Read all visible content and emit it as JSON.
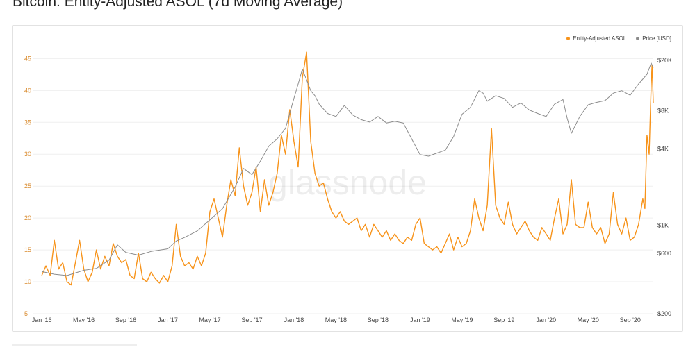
{
  "page": {
    "title": "Bitcoin: Entity-Adjusted ASOL (7d Moving Average)"
  },
  "watermark": "glassnode",
  "legend": [
    {
      "label": "Entity-Adjusted ASOL",
      "color": "#f7931a"
    },
    {
      "label": "Price [USD]",
      "color": "#8c8c8c"
    }
  ],
  "chart_data": {
    "type": "line",
    "title": "Bitcoin: Entity-Adjusted ASOL (7d Moving Average)",
    "x_ticks": [
      "Jan '16",
      "May '16",
      "Sep '16",
      "Jan '17",
      "May '17",
      "Sep '17",
      "Jan '18",
      "May '18",
      "Sep '18",
      "Jan '19",
      "May '19",
      "Sep '19",
      "Jan '20",
      "May '20",
      "Sep '20"
    ],
    "y_left": {
      "ticks": [
        5,
        10,
        15,
        20,
        25,
        30,
        35,
        40,
        45
      ],
      "range": [
        5,
        47
      ]
    },
    "y_right": {
      "scale": "log",
      "tick_values": [
        200,
        600,
        1000,
        4000,
        8000,
        20000
      ],
      "tick_labels": [
        "$200",
        "$600",
        "$1K",
        "$4K",
        "$8K",
        "$20K"
      ],
      "range": [
        200,
        26000
      ]
    },
    "x_range": [
      -0.2,
      14.55
    ],
    "grid": true,
    "legend_position": "top-right",
    "series": [
      {
        "name": "Entity-Adjusted ASOL",
        "axis": "left",
        "color": "#f7931a",
        "points": [
          [
            0,
            11
          ],
          [
            0.1,
            12.5
          ],
          [
            0.2,
            11
          ],
          [
            0.3,
            16.5
          ],
          [
            0.4,
            12
          ],
          [
            0.5,
            13
          ],
          [
            0.6,
            10
          ],
          [
            0.7,
            9.5
          ],
          [
            0.8,
            13
          ],
          [
            0.9,
            16.5
          ],
          [
            1,
            12
          ],
          [
            1.1,
            10
          ],
          [
            1.2,
            11.5
          ],
          [
            1.3,
            15
          ],
          [
            1.4,
            12
          ],
          [
            1.5,
            14
          ],
          [
            1.6,
            12.5
          ],
          [
            1.7,
            16
          ],
          [
            1.8,
            14
          ],
          [
            1.9,
            13
          ],
          [
            2,
            13.5
          ],
          [
            2.1,
            11
          ],
          [
            2.2,
            10.5
          ],
          [
            2.3,
            14.5
          ],
          [
            2.4,
            10.5
          ],
          [
            2.5,
            10
          ],
          [
            2.6,
            11.5
          ],
          [
            2.7,
            10.5
          ],
          [
            2.8,
            9.8
          ],
          [
            2.9,
            11
          ],
          [
            3,
            10
          ],
          [
            3.1,
            12.5
          ],
          [
            3.2,
            19
          ],
          [
            3.3,
            14
          ],
          [
            3.4,
            12.5
          ],
          [
            3.5,
            13
          ],
          [
            3.6,
            12
          ],
          [
            3.7,
            14
          ],
          [
            3.8,
            12.5
          ],
          [
            3.9,
            14.5
          ],
          [
            4,
            21
          ],
          [
            4.1,
            23
          ],
          [
            4.2,
            20
          ],
          [
            4.3,
            17
          ],
          [
            4.4,
            22
          ],
          [
            4.5,
            26
          ],
          [
            4.6,
            23.5
          ],
          [
            4.7,
            31
          ],
          [
            4.8,
            25
          ],
          [
            4.9,
            22
          ],
          [
            5,
            24
          ],
          [
            5.1,
            28
          ],
          [
            5.2,
            21
          ],
          [
            5.3,
            26
          ],
          [
            5.4,
            22
          ],
          [
            5.5,
            24
          ],
          [
            5.6,
            27
          ],
          [
            5.7,
            33
          ],
          [
            5.8,
            30
          ],
          [
            5.9,
            37
          ],
          [
            6,
            32
          ],
          [
            6.1,
            28
          ],
          [
            6.2,
            42
          ],
          [
            6.3,
            46
          ],
          [
            6.4,
            32
          ],
          [
            6.5,
            27
          ],
          [
            6.6,
            25
          ],
          [
            6.7,
            25.5
          ],
          [
            6.8,
            23
          ],
          [
            6.9,
            21
          ],
          [
            7,
            20
          ],
          [
            7.1,
            21
          ],
          [
            7.2,
            19.5
          ],
          [
            7.3,
            19
          ],
          [
            7.4,
            19.5
          ],
          [
            7.5,
            20
          ],
          [
            7.6,
            18
          ],
          [
            7.7,
            19
          ],
          [
            7.8,
            17
          ],
          [
            7.9,
            19
          ],
          [
            8,
            18
          ],
          [
            8.1,
            17
          ],
          [
            8.2,
            18
          ],
          [
            8.3,
            16.5
          ],
          [
            8.4,
            17.5
          ],
          [
            8.5,
            16.5
          ],
          [
            8.6,
            16
          ],
          [
            8.7,
            17
          ],
          [
            8.8,
            16.5
          ],
          [
            8.9,
            19
          ],
          [
            9,
            20
          ],
          [
            9.1,
            16
          ],
          [
            9.2,
            15.5
          ],
          [
            9.3,
            15
          ],
          [
            9.4,
            15.5
          ],
          [
            9.5,
            14.5
          ],
          [
            9.6,
            16
          ],
          [
            9.7,
            17.5
          ],
          [
            9.8,
            15
          ],
          [
            9.9,
            17
          ],
          [
            10,
            15.5
          ],
          [
            10.1,
            16
          ],
          [
            10.2,
            18
          ],
          [
            10.3,
            23
          ],
          [
            10.4,
            20
          ],
          [
            10.5,
            18
          ],
          [
            10.6,
            22
          ],
          [
            10.7,
            34
          ],
          [
            10.8,
            22
          ],
          [
            10.9,
            20
          ],
          [
            11,
            19
          ],
          [
            11.1,
            22.5
          ],
          [
            11.2,
            19
          ],
          [
            11.3,
            17.5
          ],
          [
            11.4,
            18.5
          ],
          [
            11.5,
            19.5
          ],
          [
            11.6,
            18
          ],
          [
            11.7,
            17
          ],
          [
            11.8,
            16.5
          ],
          [
            11.9,
            18.5
          ],
          [
            12,
            17.5
          ],
          [
            12.1,
            16.5
          ],
          [
            12.2,
            20
          ],
          [
            12.3,
            23
          ],
          [
            12.4,
            17.5
          ],
          [
            12.5,
            19
          ],
          [
            12.6,
            26
          ],
          [
            12.7,
            19
          ],
          [
            12.8,
            18.5
          ],
          [
            12.9,
            18.5
          ],
          [
            13,
            22.5
          ],
          [
            13.1,
            18.5
          ],
          [
            13.2,
            17.5
          ],
          [
            13.3,
            18.5
          ],
          [
            13.4,
            16
          ],
          [
            13.5,
            17.5
          ],
          [
            13.6,
            24
          ],
          [
            13.7,
            19
          ],
          [
            13.8,
            17.5
          ],
          [
            13.9,
            20
          ],
          [
            14,
            16.5
          ],
          [
            14.1,
            17
          ],
          [
            14.2,
            19
          ],
          [
            14.3,
            23
          ],
          [
            14.35,
            21.5
          ],
          [
            14.4,
            33
          ],
          [
            14.45,
            30
          ],
          [
            14.5,
            41
          ],
          [
            14.52,
            44
          ],
          [
            14.55,
            38
          ]
        ]
      },
      {
        "name": "Price [USD]",
        "axis": "right",
        "color": "#8c8c8c",
        "points": [
          [
            0,
            430
          ],
          [
            0.3,
            410
          ],
          [
            0.6,
            400
          ],
          [
            1,
            440
          ],
          [
            1.3,
            455
          ],
          [
            1.6,
            530
          ],
          [
            1.8,
            700
          ],
          [
            2,
            610
          ],
          [
            2.3,
            580
          ],
          [
            2.6,
            620
          ],
          [
            3,
            650
          ],
          [
            3.2,
            750
          ],
          [
            3.4,
            800
          ],
          [
            3.7,
            900
          ],
          [
            4,
            1100
          ],
          [
            4.3,
            1350
          ],
          [
            4.6,
            2000
          ],
          [
            4.8,
            2800
          ],
          [
            5,
            2500
          ],
          [
            5.2,
            3200
          ],
          [
            5.4,
            4200
          ],
          [
            5.6,
            4800
          ],
          [
            5.8,
            5800
          ],
          [
            6,
            10000
          ],
          [
            6.1,
            13000
          ],
          [
            6.2,
            17000
          ],
          [
            6.3,
            14000
          ],
          [
            6.4,
            11500
          ],
          [
            6.5,
            10500
          ],
          [
            6.6,
            9000
          ],
          [
            6.8,
            7600
          ],
          [
            7,
            7200
          ],
          [
            7.2,
            8800
          ],
          [
            7.4,
            7400
          ],
          [
            7.6,
            6800
          ],
          [
            7.8,
            6500
          ],
          [
            8,
            7200
          ],
          [
            8.2,
            6400
          ],
          [
            8.4,
            6600
          ],
          [
            8.6,
            6400
          ],
          [
            8.8,
            4800
          ],
          [
            9,
            3600
          ],
          [
            9.2,
            3500
          ],
          [
            9.4,
            3700
          ],
          [
            9.6,
            3900
          ],
          [
            9.8,
            5000
          ],
          [
            10,
            7500
          ],
          [
            10.2,
            8500
          ],
          [
            10.4,
            11500
          ],
          [
            10.5,
            11000
          ],
          [
            10.6,
            9500
          ],
          [
            10.8,
            10500
          ],
          [
            11,
            10000
          ],
          [
            11.2,
            8500
          ],
          [
            11.4,
            9200
          ],
          [
            11.6,
            8100
          ],
          [
            11.8,
            7600
          ],
          [
            12,
            7200
          ],
          [
            12.2,
            9000
          ],
          [
            12.4,
            9800
          ],
          [
            12.5,
            7000
          ],
          [
            12.6,
            5300
          ],
          [
            12.8,
            7200
          ],
          [
            13,
            8900
          ],
          [
            13.2,
            9300
          ],
          [
            13.4,
            9600
          ],
          [
            13.6,
            11000
          ],
          [
            13.8,
            11500
          ],
          [
            14,
            10600
          ],
          [
            14.2,
            13000
          ],
          [
            14.4,
            15500
          ],
          [
            14.5,
            19000
          ],
          [
            14.55,
            17500
          ]
        ]
      }
    ]
  }
}
